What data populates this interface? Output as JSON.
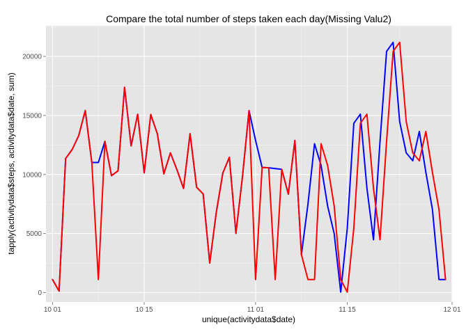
{
  "chart_data": {
    "type": "line",
    "title": "Compare the total number of steps taken each day(Missing Valu2)",
    "xlabel": "unique(activitydata$date)",
    "ylabel": "tapply(activitydata$steps, activitydata$date, sum)",
    "xlim": [
      "2012-09-30",
      "2012-12-01"
    ],
    "ylim": [
      -800,
      22600
    ],
    "grid": true,
    "legend": "none",
    "x_ticks": [
      {
        "value": "2012-10-01",
        "label": "10 01"
      },
      {
        "value": "2012-10-15",
        "label": "10 15"
      },
      {
        "value": "2012-11-01",
        "label": "11 01"
      },
      {
        "value": "2012-11-15",
        "label": "11 15"
      },
      {
        "value": "2012-12-01",
        "label": "12 01"
      }
    ],
    "y_ticks": [
      0,
      5000,
      10000,
      15000,
      20000
    ],
    "dates": [
      "2012-10-01",
      "2012-10-02",
      "2012-10-03",
      "2012-10-04",
      "2012-10-05",
      "2012-10-06",
      "2012-10-07",
      "2012-10-08",
      "2012-10-09",
      "2012-10-10",
      "2012-10-11",
      "2012-10-12",
      "2012-10-13",
      "2012-10-14",
      "2012-10-15",
      "2012-10-16",
      "2012-10-17",
      "2012-10-18",
      "2012-10-19",
      "2012-10-20",
      "2012-10-21",
      "2012-10-22",
      "2012-10-23",
      "2012-10-24",
      "2012-10-25",
      "2012-10-26",
      "2012-10-27",
      "2012-10-28",
      "2012-10-29",
      "2012-10-30",
      "2012-10-31",
      "2012-11-01",
      "2012-11-02",
      "2012-11-03",
      "2012-11-04",
      "2012-11-05",
      "2012-11-06",
      "2012-11-07",
      "2012-11-08",
      "2012-11-09",
      "2012-11-10",
      "2012-11-11",
      "2012-11-12",
      "2012-11-13",
      "2012-11-14",
      "2012-11-15",
      "2012-11-16",
      "2012-11-17",
      "2012-11-18",
      "2012-11-19",
      "2012-11-20",
      "2012-11-21",
      "2012-11-22",
      "2012-11-23",
      "2012-11-24",
      "2012-11-25",
      "2012-11-26",
      "2012-11-27",
      "2012-11-28",
      "2012-11-29",
      "2012-11-30"
    ],
    "series": [
      {
        "color": "#0000FF",
        "values": [
          1100,
          126,
          11352,
          12116,
          13294,
          15420,
          11015,
          11015,
          12811,
          9900,
          10304,
          17382,
          12426,
          15098,
          10139,
          15084,
          13452,
          10056,
          11829,
          10395,
          8821,
          13460,
          8918,
          8355,
          2492,
          6778,
          10119,
          11458,
          5018,
          9819,
          15414,
          12890,
          10600,
          10571,
          10500,
          10439,
          8334,
          12883,
          3219,
          7500,
          12608,
          10765,
          7336,
          5000,
          41,
          5441,
          14339,
          15110,
          8841,
          4472,
          12787,
          20427,
          21194,
          14478,
          11834,
          11162,
          13646,
          10183,
          7047,
          1100,
          1100
        ]
      },
      {
        "color": "#FF0000",
        "values": [
          1100,
          126,
          11352,
          12116,
          13294,
          15420,
          11015,
          1100,
          12811,
          9900,
          10304,
          17382,
          12426,
          15098,
          10139,
          15084,
          13452,
          10056,
          11829,
          10395,
          8821,
          13460,
          8918,
          8355,
          2492,
          6778,
          10119,
          11458,
          5018,
          9819,
          15414,
          1100,
          10600,
          10571,
          1100,
          10439,
          8334,
          12883,
          3219,
          1100,
          1100,
          12608,
          10765,
          7336,
          1100,
          41,
          5441,
          14339,
          15110,
          8841,
          4472,
          12787,
          20427,
          21194,
          14478,
          11834,
          11162,
          13646,
          10183,
          7047,
          1100
        ]
      }
    ]
  }
}
